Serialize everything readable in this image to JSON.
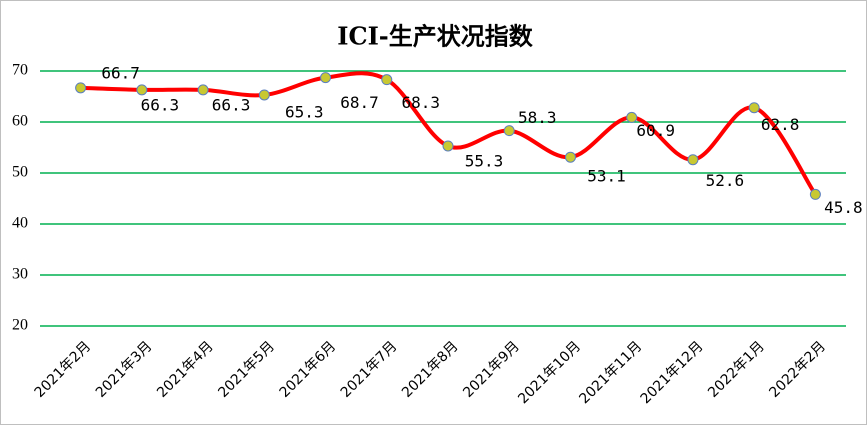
{
  "chart_data": {
    "type": "line",
    "title": "ICI-生产状况指数",
    "categories": [
      "2021年2月",
      "2021年3月",
      "2021年4月",
      "2021年5月",
      "2021年6月",
      "2021年7月",
      "2021年8月",
      "2021年9月",
      "2021年10月",
      "2021年11月",
      "2021年12月",
      "2022年1月",
      "2022年2月"
    ],
    "series": [
      {
        "name": "ICI-生产状况指数",
        "color": "#ff0000",
        "values": [
          66.7,
          66.3,
          66.3,
          65.3,
          68.7,
          68.3,
          55.3,
          58.3,
          53.1,
          60.9,
          52.6,
          62.8,
          45.8
        ]
      }
    ],
    "ylim": [
      20,
      70
    ],
    "yticks": [
      20,
      30,
      40,
      50,
      60,
      70
    ],
    "grid": true,
    "grid_color": "#00b050",
    "marker_color": "#c8c832"
  }
}
